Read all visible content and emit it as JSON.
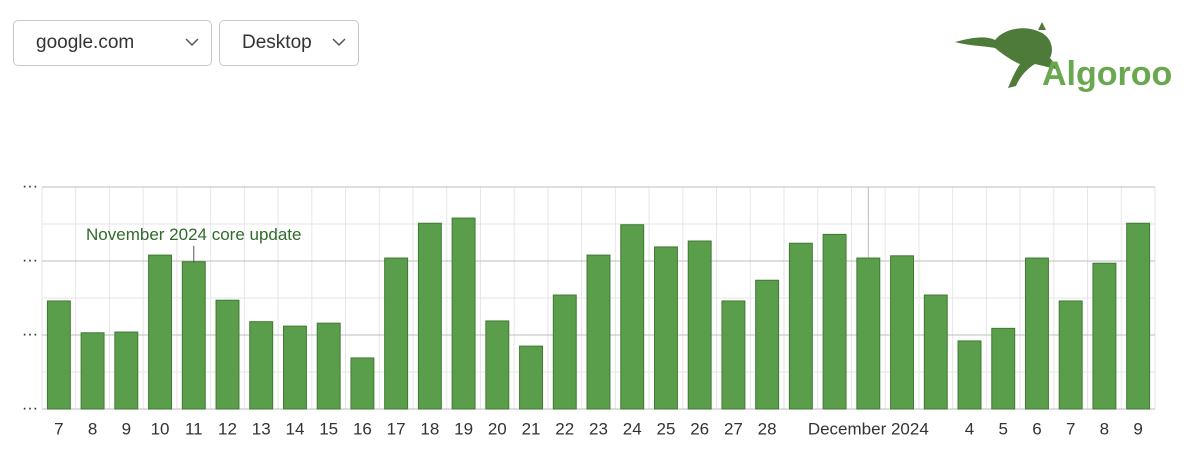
{
  "controls": {
    "site": "google.com",
    "device": "Desktop"
  },
  "logo": {
    "text": "Algoroo"
  },
  "chart_data": {
    "type": "bar",
    "categories": [
      "7",
      "8",
      "9",
      "10",
      "11",
      "12",
      "13",
      "14",
      "15",
      "16",
      "17",
      "18",
      "19",
      "20",
      "21",
      "22",
      "23",
      "24",
      "25",
      "26",
      "27",
      "28",
      null,
      null,
      "December 2024",
      null,
      null,
      "4",
      "5",
      "6",
      "7",
      "8",
      "9"
    ],
    "values": [
      1.46,
      1.03,
      1.04,
      2.08,
      1.99,
      1.47,
      1.18,
      1.12,
      1.16,
      0.69,
      2.04,
      2.51,
      2.58,
      1.19,
      0.85,
      1.54,
      2.08,
      2.49,
      2.19,
      2.27,
      1.46,
      1.74,
      2.24,
      2.36,
      2.04,
      2.07,
      1.54,
      0.92,
      1.09,
      2.04,
      1.46,
      1.97,
      2.51
    ],
    "color": "#5a9e4b",
    "ylim": [
      0,
      3
    ],
    "yticks": [
      {
        "value": 0,
        "label": "…"
      },
      {
        "value": 1,
        "label": "…"
      },
      {
        "value": 2,
        "label": "…"
      },
      {
        "value": 3,
        "label": "…"
      }
    ],
    "grid": true,
    "annotations": [
      {
        "text": "November 2024 core update",
        "index": 4
      }
    ],
    "marker_index": 24
  }
}
